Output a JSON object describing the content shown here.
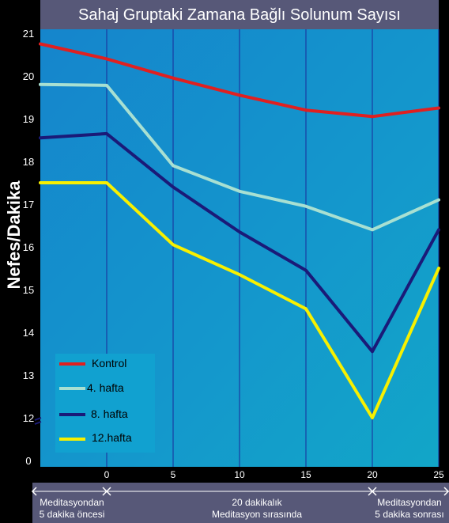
{
  "colors": {
    "title_bar": "#575878",
    "plot_background": "#1591cc",
    "grid": "#1a2a9a",
    "bottom_band": "#575878",
    "text": "#ffffff"
  },
  "chart_data": {
    "type": "line",
    "title": "Sahaj Gruptaki Zamana Bağlı Solunum Sayısı",
    "ylabel": "Nefes/Dakika",
    "xlabel": "",
    "x": [
      -5,
      0,
      5,
      10,
      15,
      20,
      25
    ],
    "x_tick_labels": [
      "0",
      "5",
      "10",
      "15",
      "20",
      "25"
    ],
    "y_tick_labels": [
      "0",
      "12",
      "13",
      "14",
      "15",
      "16",
      "17",
      "18",
      "19",
      "20",
      "21"
    ],
    "ylim": [
      12,
      21
    ],
    "axis_break": true,
    "grid": "vertical",
    "legend_position": "bottom-left",
    "series": [
      {
        "name": "Kontrol",
        "color": "#e02020",
        "values": [
          20.75,
          20.4,
          19.95,
          19.55,
          19.2,
          19.05,
          19.25
        ]
      },
      {
        "name": "4. hafta",
        "color": "#a8e0d2",
        "values": [
          19.8,
          19.78,
          17.9,
          17.3,
          16.95,
          16.4,
          17.1
        ]
      },
      {
        "name": "8. hafta",
        "color": "#1a1a78",
        "values": [
          18.55,
          18.65,
          17.4,
          16.35,
          15.45,
          13.55,
          16.4
        ]
      },
      {
        "name": "12.hafta",
        "color": "#f8f000",
        "values": [
          17.5,
          17.5,
          16.05,
          15.35,
          14.55,
          12.0,
          15.5
        ]
      }
    ],
    "phases": [
      {
        "line1": "Meditasyondan",
        "line2": "5 dakika öncesi"
      },
      {
        "line1": "20 dakikalık",
        "line2": "Meditasyon sırasında"
      },
      {
        "line1": "Meditasyondan",
        "line2": "5 dakika sonrası"
      }
    ]
  }
}
